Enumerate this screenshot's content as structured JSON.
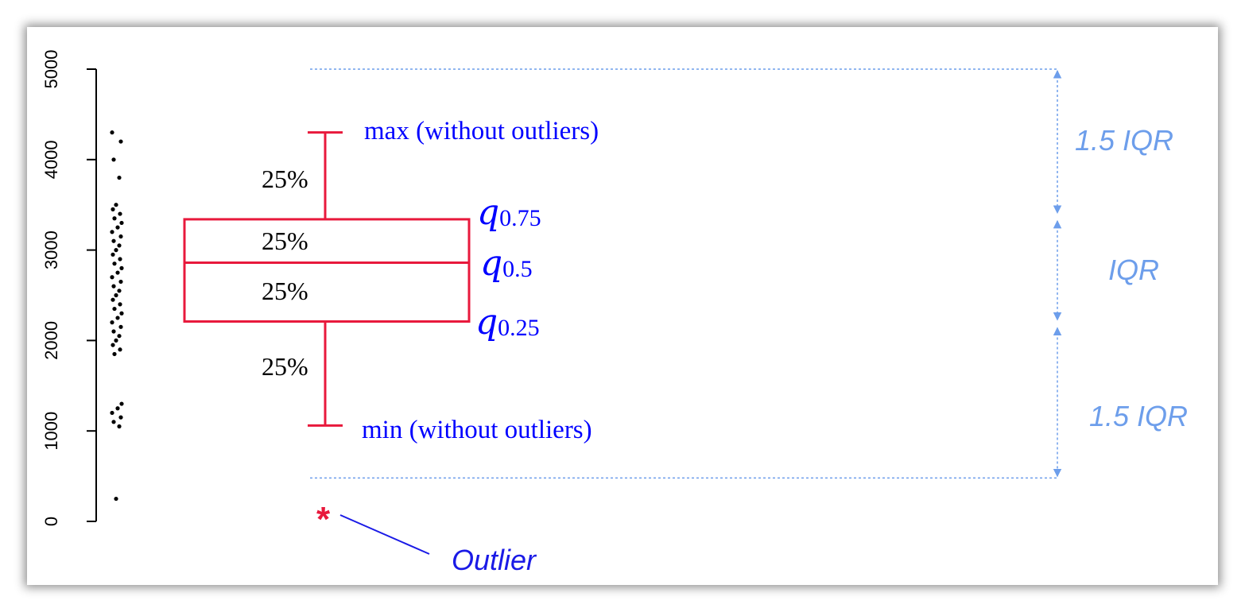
{
  "chart_data": {
    "type": "scatter",
    "title": "",
    "ylim": [
      0,
      5000
    ],
    "y_ticks": [
      "0",
      "1000",
      "2000",
      "3000",
      "4000",
      "5000"
    ],
    "strip_values": [
      250,
      1050,
      1100,
      1150,
      1200,
      1250,
      1300,
      1850,
      1900,
      1950,
      2000,
      2050,
      2100,
      2150,
      2200,
      2250,
      2300,
      2350,
      2400,
      2450,
      2500,
      2550,
      2600,
      2650,
      2700,
      2750,
      2800,
      2850,
      2900,
      2950,
      3000,
      3050,
      3100,
      3150,
      3200,
      3250,
      3300,
      3350,
      3400,
      3450,
      3500,
      3800,
      4000,
      4200,
      4300
    ],
    "boxplot": {
      "min": 1060,
      "q1": 2210,
      "median": 2860,
      "q3": 3340,
      "max": 4300,
      "outlier": 70,
      "upper_fence": 5000,
      "lower_fence": 480
    },
    "color_box": "#e8193c",
    "color_annotation": "#6d9eeb",
    "color_labels": "#0000ff"
  },
  "labels": {
    "max": "max (without outliers)",
    "min": "min (without outliers)",
    "pct_top": "25%",
    "pct_upper_box": "25%",
    "pct_lower_box": "25%",
    "pct_bottom": "25%",
    "q75_main": "q",
    "q75_sub": "0.75",
    "q50_main": "q",
    "q50_sub": "0.5",
    "q25_main": "q",
    "q25_sub": "0.25",
    "iqr_upper": "1.5 IQR",
    "iqr_middle": "IQR",
    "iqr_lower": "1.5 IQR",
    "outlier_marker": "*",
    "outlier": "Outlier"
  }
}
